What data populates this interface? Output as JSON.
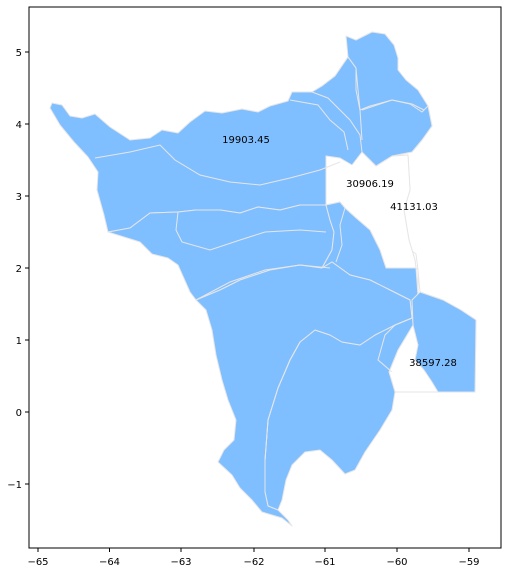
{
  "chart_data": {
    "type": "choropleth",
    "title": "",
    "xlabel": "",
    "ylabel": "",
    "xlim": [
      -65.1,
      -58.8
    ],
    "ylim": [
      -1.95,
      5.6
    ],
    "xticks": [
      "−65",
      "−64",
      "−63",
      "−62",
      "−61",
      "−60",
      "−59"
    ],
    "yticks": [
      "−1",
      "0",
      "1",
      "2",
      "3",
      "4",
      "5"
    ],
    "grid": false,
    "fill_color": "#80bfff",
    "unfilled_color": "#ffffff",
    "border_color": "#d9d9d9",
    "labels": [
      {
        "text": "19903.45",
        "x": -62.35,
        "y": 3.75
      },
      {
        "text": "30906.19",
        "x": -60.38,
        "y": 3.15
      },
      {
        "text": "41131.03",
        "x": -59.8,
        "y": 2.83
      },
      {
        "text": "38597.28",
        "x": -59.5,
        "y": 0.68
      }
    ]
  }
}
